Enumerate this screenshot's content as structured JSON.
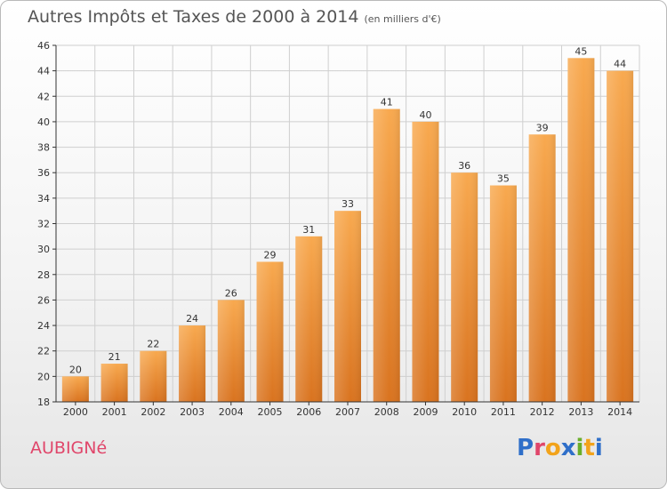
{
  "title": "Autres Impôts et Taxes de 2000 à 2014",
  "subtitle": "(en milliers d'€)",
  "place": "AUBIGNé",
  "logo": {
    "text": "Proxiti",
    "letter_colors": [
      "#2f6fc9",
      "#e0466a",
      "#f2a31b",
      "#2f6fc9",
      "#6aae2a",
      "#f2a31b",
      "#2f6fc9"
    ]
  },
  "colors": {
    "bar_light": "#f8a94f",
    "bar_dark": "#d9731f",
    "axis": "#333333",
    "grid": "#cfcfcf"
  },
  "chart_data": {
    "type": "bar",
    "categories": [
      "2000",
      "2001",
      "2002",
      "2003",
      "2004",
      "2005",
      "2006",
      "2007",
      "2008",
      "2009",
      "2010",
      "2011",
      "2012",
      "2013",
      "2014"
    ],
    "values": [
      20,
      21,
      22,
      24,
      26,
      29,
      31,
      33,
      41,
      40,
      36,
      35,
      39,
      45,
      44
    ],
    "title": "Autres Impôts et Taxes de 2000 à 2014",
    "ylim": [
      18,
      46
    ],
    "yticks": [
      18,
      20,
      22,
      24,
      26,
      28,
      30,
      32,
      34,
      36,
      38,
      40,
      42,
      44,
      46
    ],
    "grid": true,
    "data_labels": true
  }
}
